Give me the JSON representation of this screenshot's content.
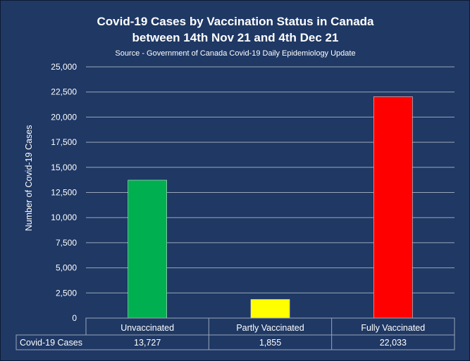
{
  "chart_data": {
    "type": "bar",
    "title": "Covid-19 Cases by Vaccination Status in Canada",
    "title_line2": "between 14th Nov 21 and 4th Dec 21",
    "subtitle": "Source - Government of Canada Covid-19 Daily Epidemiology Update",
    "xlabel": "",
    "ylabel": "Number of Covid-19 Cases",
    "ylim": [
      0,
      25000
    ],
    "yticks": [
      0,
      2500,
      5000,
      7500,
      10000,
      12500,
      15000,
      17500,
      20000,
      22500,
      25000
    ],
    "ytick_labels": [
      "0",
      "2,500",
      "5,000",
      "7,500",
      "10,000",
      "12,500",
      "15,000",
      "17,500",
      "20,000",
      "22,500",
      "25,000"
    ],
    "grid": true,
    "categories": [
      "Unvaccinated",
      "Partly Vaccinated",
      "Fully Vaccinated"
    ],
    "series": [
      {
        "name": "Covid-19 Cases",
        "values": [
          13727,
          1855,
          22033
        ],
        "value_labels": [
          "13,727",
          "1,855",
          "22,033"
        ],
        "colors": [
          "#00b050",
          "#ffff00",
          "#ff0000"
        ]
      }
    ],
    "data_table": true,
    "background": "#1f3864",
    "text_color": "#ffffff",
    "grid_color": "#9aa6b8"
  }
}
